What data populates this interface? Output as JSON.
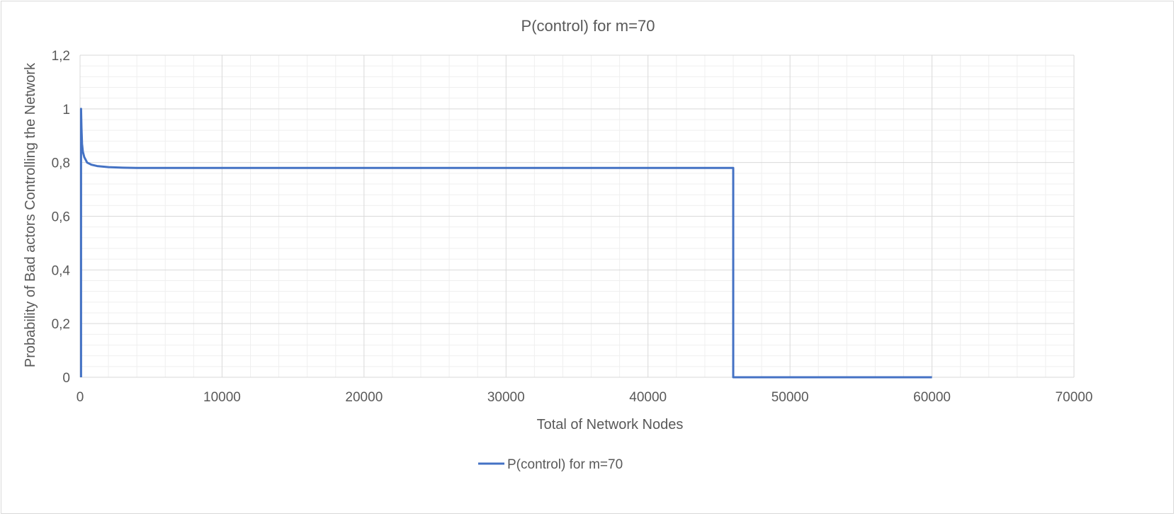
{
  "chart_data": {
    "type": "line",
    "title": "P(control) for m=70",
    "xlabel": "Total of Network Nodes",
    "ylabel": "Probability of Bad actors Controlling the Network",
    "xlim": [
      0,
      70000
    ],
    "ylim": [
      0,
      1.2
    ],
    "x_ticks": [
      "0",
      "10000",
      "20000",
      "30000",
      "40000",
      "50000",
      "60000",
      "70000"
    ],
    "y_ticks": [
      "0",
      "0,2",
      "0,4",
      "0,6",
      "0,8",
      "1",
      "1,2"
    ],
    "x_tick_values": [
      0,
      10000,
      20000,
      30000,
      40000,
      50000,
      60000,
      70000
    ],
    "y_tick_values": [
      0,
      0.2,
      0.4,
      0.6,
      0.8,
      1.0,
      1.2
    ],
    "x_minor_step": 2000,
    "y_minor_step": 0.04,
    "grid": true,
    "legend_position": "bottom",
    "series": [
      {
        "name": "P(control) for m=70",
        "color": "#4472c4",
        "x": [
          70,
          70,
          100,
          140,
          200,
          300,
          500,
          800,
          1200,
          2000,
          3000,
          4000,
          46000,
          46000,
          60000
        ],
        "y": [
          0,
          1.0,
          0.93,
          0.87,
          0.84,
          0.82,
          0.8,
          0.792,
          0.787,
          0.783,
          0.781,
          0.78,
          0.78,
          0,
          0
        ]
      }
    ]
  }
}
